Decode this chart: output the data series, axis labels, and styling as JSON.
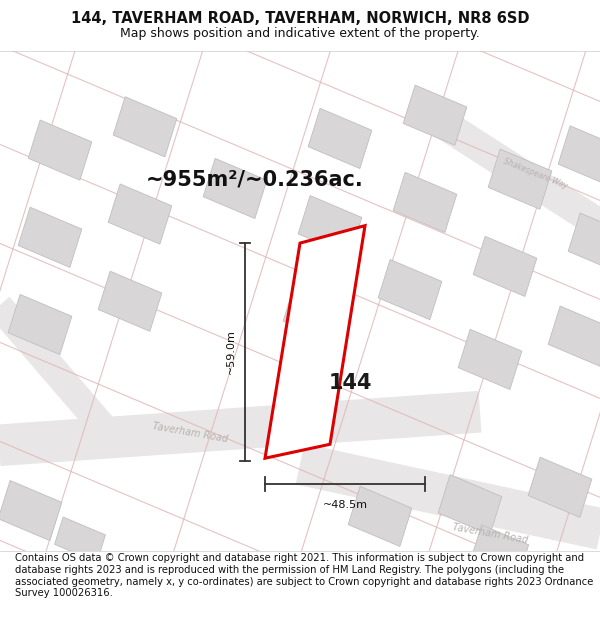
{
  "title_line1": "144, TAVERHAM ROAD, TAVERHAM, NORWICH, NR8 6SD",
  "title_line2": "Map shows position and indicative extent of the property.",
  "area_label": "~955m²/~0.236ac.",
  "house_number": "144",
  "width_label": "~48.5m",
  "height_label": "~59.0m",
  "footer": "Contains OS data © Crown copyright and database right 2021. This information is subject to Crown copyright and database rights 2023 and is reproduced with the permission of HM Land Registry. The polygons (including the associated geometry, namely x, y co-ordinates) are subject to Crown copyright and database rights 2023 Ordnance Survey 100026316.",
  "bg_color": "#ffffff",
  "map_bg": "#f7f5f5",
  "road_outline_color": "#e0b8b8",
  "building_fill": "#d8d6d6",
  "building_edge": "#c0bebe",
  "plot_color": "#dd0000",
  "road_gray": "#e8e6e6",
  "road_center": "#ddd8d8",
  "road_label_color": "#b8b2b2",
  "dim_color": "#333333",
  "title_fontsize": 10.5,
  "subtitle_fontsize": 9,
  "area_fontsize": 15,
  "footer_fontsize": 7.2
}
